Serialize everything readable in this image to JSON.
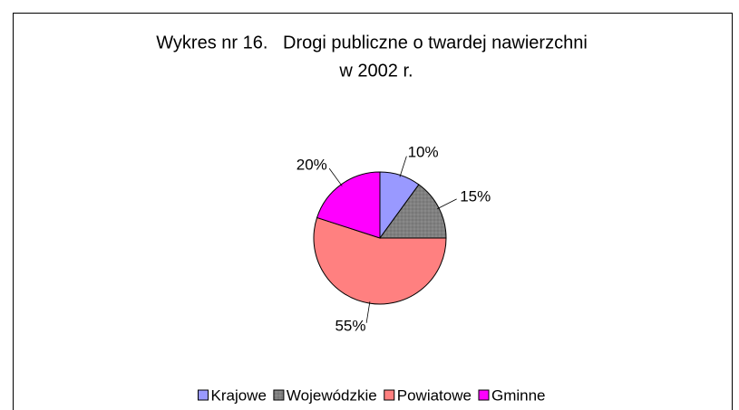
{
  "chart_data": {
    "type": "pie",
    "title": [
      "Wykres nr 16.   Drogi publiczne o twardej nawierzchni",
      "w 2002 r."
    ],
    "categories": [
      "Krajowe",
      "Wojewódzkie",
      "Powiatowe",
      "Gminne"
    ],
    "values": [
      10,
      15,
      55,
      20
    ],
    "value_labels": [
      "10%",
      "15%",
      "55%",
      "20%"
    ],
    "colors": [
      "#9999ff",
      "#808080",
      "#ff8080",
      "#ff00ff"
    ],
    "legend": "bottom"
  }
}
